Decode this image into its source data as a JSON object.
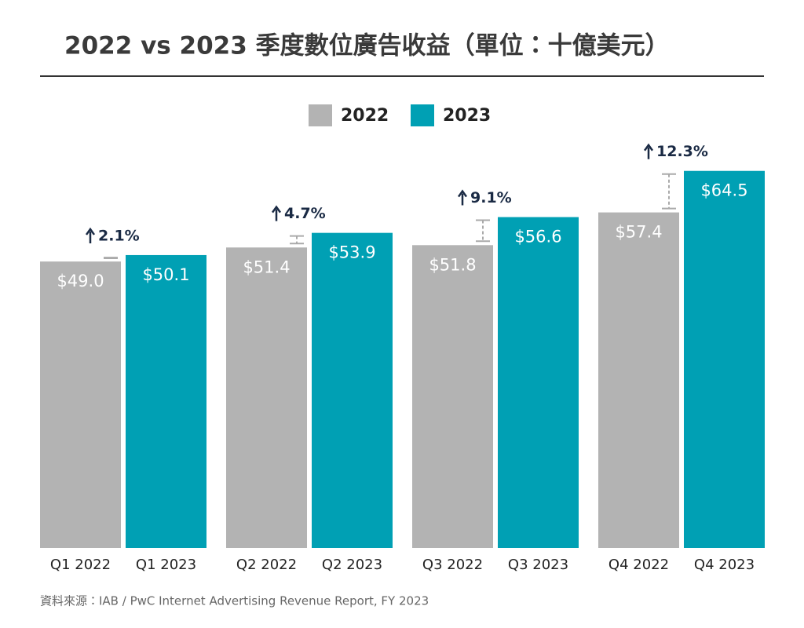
{
  "chart_data": {
    "type": "bar",
    "title": "2022 vs 2023 季度數位廣告收益（單位：十億美元）",
    "source": "資料來源：IAB / PwC Internet Advertising Revenue Report, FY 2023",
    "ylim": [
      0,
      65
    ],
    "series": [
      {
        "name": "2022",
        "color": "#b3b3b3",
        "values": [
          49.0,
          51.4,
          51.8,
          57.4
        ],
        "value_labels": [
          "$49.0",
          "$51.4",
          "$51.8",
          "$57.4"
        ],
        "bar_labels": [
          "Q1 2022",
          "Q2 2022",
          "Q3 2022",
          "Q4 2022"
        ]
      },
      {
        "name": "2023",
        "color": "#00a0b4",
        "values": [
          50.1,
          53.9,
          56.6,
          64.5
        ],
        "value_labels": [
          "$50.1",
          "$53.9",
          "$56.6",
          "$64.5"
        ],
        "bar_labels": [
          "Q1 2023",
          "Q2 2023",
          "Q3 2023",
          "Q4 2023"
        ]
      }
    ],
    "growth_labels": [
      "2.1%",
      "4.7%",
      "9.1%",
      "12.3%"
    ]
  }
}
